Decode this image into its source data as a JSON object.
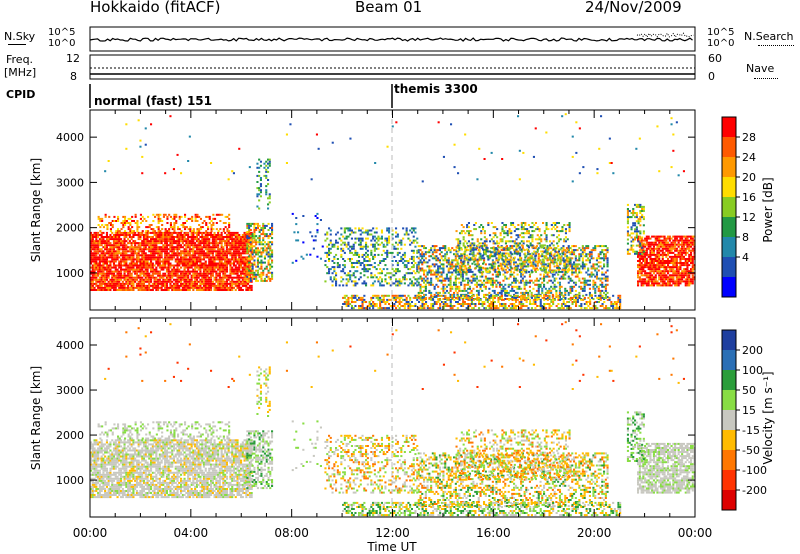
{
  "header": {
    "station": "Hokkaido (fitACF)",
    "beam": "Beam 01",
    "date": "24/Nov/2009"
  },
  "strip_labels": {
    "nsky": "N.Sky",
    "nsearch": "N.Search",
    "freq": "Freq.",
    "freq_unit": "[MHz]",
    "nave": "Nave",
    "cpid": "CPID",
    "nsky_ticks": [
      "10^5",
      "10^0"
    ],
    "nsearch_ticks": [
      "10^5",
      "10^0"
    ],
    "freq_ticks": [
      "12",
      "8"
    ],
    "nave_ticks": [
      "60",
      "0"
    ]
  },
  "cpid_segments": [
    {
      "label": "normal (fast) 151",
      "start_hour": 0
    },
    {
      "label": "themis 3300",
      "start_hour": 12
    }
  ],
  "chart_data": [
    {
      "type": "heatmap",
      "panel": "power",
      "ylabel": "Slant Range [km]",
      "xlabel": "Time UT",
      "x_ticks": [
        "00:00",
        "04:00",
        "08:00",
        "12:00",
        "16:00",
        "20:00",
        "00:00"
      ],
      "y_ticks": [
        1000,
        2000,
        3000,
        4000
      ],
      "ylim": [
        180,
        4600
      ],
      "xlim": [
        0,
        24
      ],
      "colorbar": {
        "label": "Power [dB]",
        "ticks": [
          "28",
          "24",
          "20",
          "16",
          "12",
          "8",
          "4"
        ],
        "colors": [
          "#ff0000",
          "#ff5a00",
          "#ff9900",
          "#ffdd00",
          "#88cc22",
          "#229944",
          "#2288aa",
          "#1f4fb3",
          "#0000ff"
        ]
      }
    },
    {
      "type": "heatmap",
      "panel": "velocity",
      "ylabel": "Slant Range [km]",
      "xlabel": "Time UT",
      "x_ticks": [
        "00:00",
        "04:00",
        "08:00",
        "12:00",
        "16:00",
        "20:00",
        "00:00"
      ],
      "y_ticks": [
        1000,
        2000,
        3000,
        4000
      ],
      "ylim": [
        180,
        4600
      ],
      "xlim": [
        0,
        24
      ],
      "colorbar": {
        "label": "Velocity [m s⁻¹]",
        "ticks": [
          "200",
          "100",
          "50",
          "15",
          "-15",
          "-50",
          "-100",
          "-200"
        ],
        "colors": [
          "#1f3f9f",
          "#2a6fb5",
          "#2a9d3a",
          "#88dd44",
          "#c8c8c0",
          "#ffbb00",
          "#ff7700",
          "#ff3300",
          "#dd0000"
        ]
      }
    }
  ],
  "xlabel": "Time UT"
}
